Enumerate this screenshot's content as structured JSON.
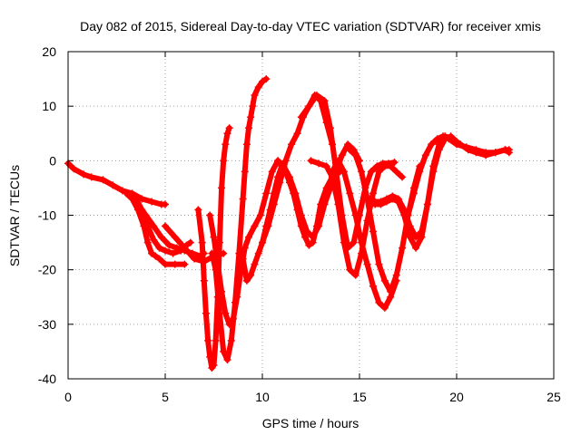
{
  "chart_data": {
    "type": "scatter",
    "title": "Day 082 of 2015, Sidereal Day-to-day VTEC variation (SDTVAR) for receiver xmis",
    "xlabel": "GPS time / hours",
    "ylabel": "SDTVAR / TECUs",
    "xlim": [
      0,
      25
    ],
    "ylim": [
      -40,
      20
    ],
    "xticks": [
      "0",
      "5",
      "10",
      "15",
      "20",
      "25"
    ],
    "yticks": [
      "-40",
      "-30",
      "-20",
      "-10",
      "0",
      "10",
      "20"
    ],
    "grid": true,
    "marker": "plus",
    "color": "#ff0000",
    "series": [
      {
        "x": [
          0.0,
          0.3,
          0.8,
          1.2,
          1.8,
          2.3,
          2.8,
          3.3,
          3.8,
          4.3,
          4.8,
          5.0
        ],
        "y": [
          -0.5,
          -1.5,
          -2.5,
          -3.0,
          -3.5,
          -4.5,
          -5.5,
          -6.0,
          -7.0,
          -7.5,
          -8.0,
          -8.0
        ]
      },
      {
        "x": [
          3.0,
          3.3,
          3.6,
          3.9,
          4.1,
          4.3,
          4.5,
          4.7,
          5.0,
          5.5,
          6.0
        ],
        "y": [
          -6.0,
          -7.0,
          -9.0,
          -12.0,
          -15.0,
          -17.0,
          -17.5,
          -18.0,
          -19.0,
          -19.0,
          -19.0
        ]
      },
      {
        "x": [
          3.2,
          3.6,
          4.0,
          4.4,
          4.8,
          5.2,
          5.6,
          6.0,
          6.4,
          6.8,
          7.0
        ],
        "y": [
          -6.5,
          -8.0,
          -10.0,
          -12.0,
          -14.0,
          -15.5,
          -16.0,
          -16.5,
          -17.0,
          -17.5,
          -17.0
        ]
      },
      {
        "x": [
          3.5,
          3.8,
          4.1,
          4.4,
          4.7,
          5.0,
          5.4,
          5.8,
          6.1,
          6.3
        ],
        "y": [
          -7.0,
          -9.0,
          -12.0,
          -14.5,
          -16.0,
          -16.5,
          -17.0,
          -16.5,
          -15.5,
          -15.0
        ]
      },
      {
        "x": [
          5.0,
          5.5,
          6.0,
          6.5,
          7.0,
          7.5,
          8.0
        ],
        "y": [
          -12.0,
          -14.0,
          -16.0,
          -18.0,
          -18.5,
          -17.5,
          -17.0
        ]
      },
      {
        "x": [
          6.7,
          6.9,
          7.0,
          7.1,
          7.2,
          7.3,
          7.4,
          7.5,
          7.6,
          7.7,
          7.8,
          7.9,
          8.0,
          8.1,
          8.2,
          8.3
        ],
        "y": [
          -9.0,
          -15.0,
          -22.0,
          -28.0,
          -33.0,
          -36.0,
          -38.0,
          -37.5,
          -33.0,
          -25.0,
          -15.0,
          -5.0,
          0.0,
          3.0,
          5.0,
          6.0
        ]
      },
      {
        "x": [
          7.4,
          7.6,
          7.8,
          8.0,
          8.2,
          8.4,
          8.6,
          8.8,
          9.0,
          9.1,
          9.2,
          9.3,
          9.4,
          9.5,
          9.6,
          9.8,
          10.0,
          10.2
        ],
        "y": [
          -17.0,
          -20.0,
          -28.0,
          -35.0,
          -36.5,
          -33.0,
          -26.0,
          -17.0,
          -7.0,
          -2.0,
          3.0,
          6.0,
          8.0,
          10.0,
          12.0,
          13.5,
          14.5,
          15.0
        ]
      },
      {
        "x": [
          7.3,
          7.5,
          7.7,
          7.9,
          8.1,
          8.3,
          8.5,
          8.7,
          8.9,
          9.1,
          9.3,
          9.6,
          9.9,
          10.2,
          10.5,
          10.8
        ],
        "y": [
          -10.0,
          -14.0,
          -19.0,
          -24.0,
          -28.0,
          -30.0,
          -29.0,
          -25.0,
          -20.0,
          -16.0,
          -14.0,
          -12.0,
          -10.0,
          -6.0,
          -2.0,
          0.0
        ]
      },
      {
        "x": [
          9.0,
          9.2,
          9.4,
          9.6,
          9.8,
          10.0,
          10.2,
          10.4,
          10.6,
          10.8,
          11.0,
          11.2,
          11.4,
          11.6,
          11.8,
          12.0,
          12.2,
          12.4,
          12.6,
          12.8,
          13.0,
          13.3,
          13.6,
          14.0
        ],
        "y": [
          -18.0,
          -22.0,
          -21.0,
          -19.0,
          -17.0,
          -15.0,
          -12.0,
          -9.0,
          -6.0,
          -3.0,
          -1.0,
          -2.0,
          -4.0,
          -6.0,
          -9.0,
          -12.0,
          -14.0,
          -15.5,
          -15.0,
          -12.0,
          -8.0,
          -5.0,
          -3.0,
          -2.0
        ]
      },
      {
        "x": [
          10.0,
          10.3,
          10.6,
          10.9,
          11.2,
          11.5,
          11.8,
          12.1,
          12.4,
          12.7,
          13.0,
          13.3,
          13.6
        ],
        "y": [
          -15.0,
          -12.0,
          -8.0,
          -4.0,
          0.0,
          3.0,
          5.0,
          8.0,
          10.0,
          12.0,
          11.0,
          7.0,
          3.0
        ]
      },
      {
        "x": [
          10.8,
          11.1,
          11.4,
          11.7,
          12.0,
          12.3,
          12.6,
          12.9,
          13.2,
          13.5,
          13.8,
          14.1,
          14.4,
          14.7,
          15.0
        ],
        "y": [
          0.0,
          -1.0,
          -3.0,
          -6.0,
          -10.0,
          -13.0,
          -14.0,
          -12.0,
          -8.0,
          -5.0,
          -2.0,
          1.0,
          3.0,
          2.0,
          0.0
        ]
      },
      {
        "x": [
          12.0,
          12.4,
          12.8,
          13.2,
          13.5,
          13.8,
          14.1,
          14.4,
          14.7,
          15.0,
          15.3,
          15.6,
          15.9,
          16.2,
          16.5,
          16.8
        ],
        "y": [
          8.0,
          10.0,
          12.0,
          11.0,
          6.0,
          -2.0,
          -10.0,
          -16.0,
          -15.0,
          -10.0,
          -5.0,
          -2.0,
          -1.0,
          -0.5,
          -0.5,
          -0.3
        ]
      },
      {
        "x": [
          12.5,
          12.9,
          13.3,
          13.6,
          13.9,
          14.2,
          14.5,
          14.8,
          15.1,
          15.4,
          15.7,
          16.0,
          16.3,
          16.6,
          16.9,
          17.2
        ],
        "y": [
          0.0,
          -0.5,
          -1.0,
          -3.0,
          -8.0,
          -15.0,
          -20.0,
          -21.0,
          -17.0,
          -11.0,
          -6.0,
          -2.0,
          -1.0,
          -1.0,
          -2.0,
          -3.0
        ]
      },
      {
        "x": [
          13.6,
          13.9,
          14.2,
          14.5,
          14.8,
          15.1,
          15.4,
          15.7,
          16.0,
          16.3,
          16.6,
          16.9
        ],
        "y": [
          -2.0,
          0.0,
          -2.0,
          -6.0,
          -10.0,
          -15.0,
          -19.0,
          -23.0,
          -26.0,
          -27.0,
          -25.0,
          -22.0
        ]
      },
      {
        "x": [
          14.5,
          14.8,
          15.1,
          15.4,
          15.7,
          16.0,
          16.3,
          16.6,
          16.9,
          17.2,
          17.5,
          17.8,
          18.1
        ],
        "y": [
          2.0,
          1.0,
          -2.0,
          -7.0,
          -13.0,
          -19.0,
          -22.0,
          -24.0,
          -21.0,
          -16.0,
          -10.0,
          -5.0,
          -1.0
        ]
      },
      {
        "x": [
          15.5,
          15.8,
          16.1,
          16.4,
          16.7,
          17.0,
          17.3,
          17.6,
          17.9,
          18.2,
          18.5,
          18.8,
          19.1,
          19.4,
          19.7,
          20.0
        ],
        "y": [
          -7.0,
          -7.5,
          -7.5,
          -7.0,
          -6.5,
          -7.0,
          -9.0,
          -12.0,
          -14.0,
          -13.0,
          -8.0,
          -2.0,
          2.0,
          4.0,
          4.5,
          3.5
        ]
      },
      {
        "x": [
          15.5,
          15.8,
          16.1,
          16.4,
          16.7,
          17.0,
          17.3,
          17.6,
          17.9,
          18.2,
          18.5,
          18.8,
          19.1,
          19.4,
          19.8,
          20.2,
          20.6,
          21.0,
          21.5,
          22.0,
          22.5,
          22.7
        ],
        "y": [
          -7.5,
          -8.0,
          -8.0,
          -7.5,
          -7.0,
          -7.5,
          -10.0,
          -14.0,
          -16.0,
          -14.0,
          -8.0,
          -1.0,
          3.0,
          4.5,
          4.0,
          3.0,
          2.0,
          1.5,
          1.0,
          1.5,
          2.0,
          1.5
        ]
      },
      {
        "x": [
          17.5,
          17.8,
          18.1,
          18.4,
          18.7,
          19.0,
          19.3,
          19.6,
          20.0,
          20.5,
          21.0,
          21.5,
          22.0,
          22.5,
          22.7
        ],
        "y": [
          -10.0,
          -6.0,
          -2.0,
          1.0,
          3.0,
          4.0,
          4.5,
          4.0,
          3.0,
          2.5,
          2.0,
          1.5,
          1.5,
          2.0,
          2.0
        ]
      }
    ]
  }
}
